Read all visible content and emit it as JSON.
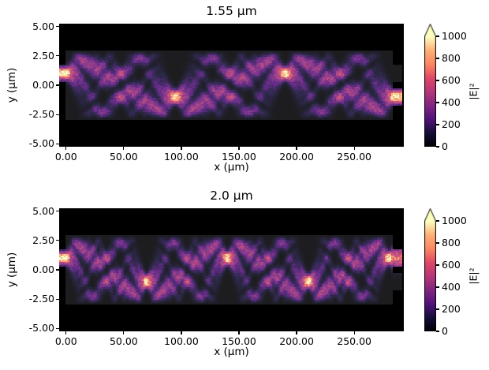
{
  "figure": {
    "background": "#ffffff",
    "xlabel": "x (μm)",
    "ylabel": "y (μm)",
    "x_tick_values": [
      0,
      50,
      100,
      150,
      200,
      250
    ],
    "x_tick_labels": [
      "0.00",
      "50.00",
      "100.00",
      "150.00",
      "200.00",
      "250.00"
    ],
    "y_tick_values": [
      5,
      2.5,
      0,
      -2.5,
      -5
    ],
    "y_tick_labels": [
      "5.00",
      "2.50",
      "0.00",
      "-2.50",
      "-5.00"
    ],
    "colorbar": {
      "label": "|E|²",
      "tick_values": [
        0,
        200,
        400,
        600,
        800,
        1000
      ],
      "tick_labels": [
        "0",
        "200",
        "400",
        "600",
        "800",
        "1000"
      ],
      "extend": "max",
      "over_color": "#fcfdbf",
      "under_color": "#000004"
    }
  },
  "chart_data": [
    {
      "type": "heatmap",
      "title": "1.55 μm",
      "xlabel": "x (μm)",
      "ylabel": "y (μm)",
      "colorbar_label": "|E|²",
      "colormap": "magma",
      "clim": [
        0,
        1000
      ],
      "xlim": [
        -6,
        293
      ],
      "ylim": [
        -5.25,
        5.25
      ],
      "wavelength_um": 1.55,
      "quantity": "|E|² field intensity in multimode slab waveguide",
      "slab": {
        "x_range": [
          0,
          283
        ],
        "y_range": [
          -3,
          3
        ]
      },
      "input_port": {
        "x_range": [
          -6,
          0
        ],
        "y_center": 1.0,
        "width": 1.4
      },
      "output_ports": [
        {
          "x_range": [
            283,
            291.5
          ],
          "y_center": 1.0,
          "width": 1.4
        },
        {
          "x_range": [
            283,
            291.5
          ],
          "y_center": -1.0,
          "width": 1.4
        }
      ],
      "source": {
        "y_center": 1.0,
        "sigma_um": 0.5,
        "peak_intensity": 1060
      },
      "mirror_image_distance_um": 95,
      "direct_image_distance_um": 190,
      "bright_spots_xy": [
        [
          0,
          1
        ],
        [
          95,
          -1
        ],
        [
          190,
          1
        ],
        [
          285,
          -1
        ]
      ],
      "exit_port_y": -1
    },
    {
      "type": "heatmap",
      "title": "2.0 μm",
      "xlabel": "x (μm)",
      "ylabel": "y (μm)",
      "colorbar_label": "|E|²",
      "colormap": "magma",
      "clim": [
        0,
        1000
      ],
      "xlim": [
        -6,
        293
      ],
      "ylim": [
        -5.25,
        5.25
      ],
      "wavelength_um": 2.0,
      "quantity": "|E|² field intensity in multimode slab waveguide",
      "slab": {
        "x_range": [
          0,
          283
        ],
        "y_range": [
          -3,
          3
        ]
      },
      "input_port": {
        "x_range": [
          -6,
          0
        ],
        "y_center": 1.0,
        "width": 1.4
      },
      "output_ports": [
        {
          "x_range": [
            283,
            291.5
          ],
          "y_center": 1.0,
          "width": 1.4
        },
        {
          "x_range": [
            283,
            291.5
          ],
          "y_center": -1.0,
          "width": 1.4
        }
      ],
      "source": {
        "y_center": 1.0,
        "sigma_um": 0.5,
        "peak_intensity": 1060
      },
      "mirror_image_distance_um": 70,
      "direct_image_distance_um": 140,
      "bright_spots_xy": [
        [
          0,
          1
        ],
        [
          70,
          -1
        ],
        [
          140,
          1
        ],
        [
          210,
          -1
        ],
        [
          280,
          1
        ]
      ],
      "exit_port_y": 1
    }
  ]
}
